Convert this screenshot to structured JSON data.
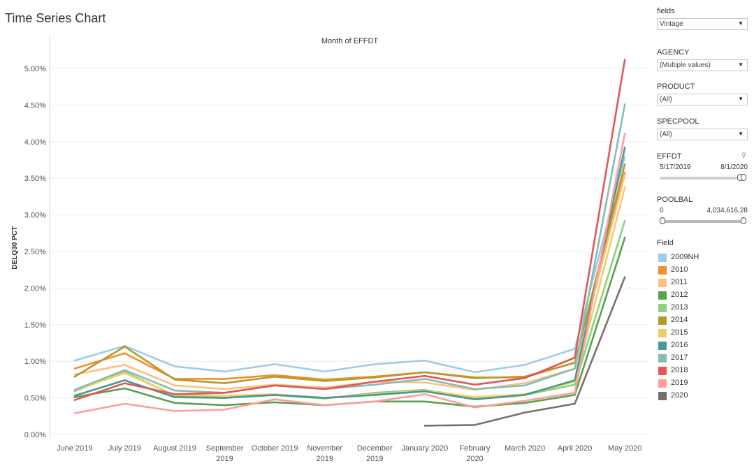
{
  "page_title": "Time Series Chart",
  "filters": {
    "fields": {
      "label": "fields",
      "value": "Vintage"
    },
    "agency": {
      "label": "AGENCY",
      "value": "(Multiple values)"
    },
    "product": {
      "label": "PRODUCT",
      "value": "(All)"
    },
    "specpool": {
      "label": "SPECPOOL",
      "value": "(All)"
    },
    "effdt": {
      "label": "EFFDT",
      "min_label": "5/17/2019",
      "max_label": "8/1/2020",
      "selected_range": [
        0.93,
        1.0
      ]
    },
    "poolbal": {
      "label": "POOLBAL",
      "min_label": "0",
      "max_label": "4,034,616,28",
      "selected_range": [
        0.0,
        1.0
      ]
    }
  },
  "legend": {
    "title": "Field"
  },
  "chart_data": {
    "type": "line",
    "title": "Month of EFFDT",
    "xlabel": "",
    "ylabel": "DELQ30 PCT",
    "categories": [
      "June 2019",
      "July 2019",
      "August 2019",
      "September\n2019",
      "October 2019",
      "November\n2019",
      "December\n2019",
      "January 2020",
      "February\n2020",
      "March 2020",
      "April 2020",
      "May 2020"
    ],
    "y_ticks": [
      "0.00%",
      "0.50%",
      "1.00%",
      "1.50%",
      "2.00%",
      "2.50%",
      "3.00%",
      "3.50%",
      "4.00%",
      "4.50%",
      "5.00%"
    ],
    "ylim": [
      0,
      5.25
    ],
    "grid": true,
    "legend_position": "right",
    "series": [
      {
        "name": "2009NH",
        "color": "#a0cbe8",
        "values": [
          1.01,
          1.21,
          0.93,
          0.86,
          0.96,
          0.86,
          0.96,
          1.01,
          0.85,
          0.95,
          1.17,
          3.8
        ]
      },
      {
        "name": "2010",
        "color": "#f28e2b",
        "values": [
          0.9,
          1.11,
          0.76,
          0.76,
          0.81,
          0.75,
          0.79,
          0.85,
          0.78,
          0.78,
          0.98,
          3.58
        ]
      },
      {
        "name": "2011",
        "color": "#ffbe7d",
        "values": [
          0.82,
          0.95,
          0.67,
          0.62,
          0.68,
          0.64,
          0.72,
          0.71,
          0.61,
          0.7,
          0.9,
          3.55
        ]
      },
      {
        "name": "2012",
        "color": "#59a14f",
        "values": [
          0.51,
          0.63,
          0.43,
          0.4,
          0.44,
          0.4,
          0.45,
          0.45,
          0.38,
          0.43,
          0.54,
          2.69
        ]
      },
      {
        "name": "2013",
        "color": "#8cd17d",
        "values": [
          0.59,
          0.86,
          0.53,
          0.5,
          0.54,
          0.49,
          0.57,
          0.61,
          0.5,
          0.54,
          0.68,
          2.92
        ]
      },
      {
        "name": "2014",
        "color": "#b6992d",
        "values": [
          0.79,
          1.2,
          0.75,
          0.7,
          0.79,
          0.73,
          0.78,
          0.85,
          0.77,
          0.79,
          0.98,
          3.69
        ]
      },
      {
        "name": "2015",
        "color": "#f1ce63",
        "values": [
          0.6,
          0.84,
          0.54,
          0.53,
          0.55,
          0.5,
          0.55,
          0.6,
          0.51,
          0.55,
          0.72,
          3.38
        ]
      },
      {
        "name": "2016",
        "color": "#499894",
        "values": [
          0.53,
          0.74,
          0.51,
          0.5,
          0.54,
          0.5,
          0.54,
          0.59,
          0.48,
          0.54,
          0.74,
          3.92
        ]
      },
      {
        "name": "2017",
        "color": "#86bcb6",
        "values": [
          0.61,
          0.88,
          0.6,
          0.57,
          0.67,
          0.62,
          0.68,
          0.76,
          0.62,
          0.67,
          0.9,
          4.51
        ]
      },
      {
        "name": "2018",
        "color": "#e15759",
        "values": [
          0.47,
          0.7,
          0.55,
          0.57,
          0.67,
          0.62,
          0.72,
          0.8,
          0.68,
          0.77,
          1.05,
          5.12
        ]
      },
      {
        "name": "2019",
        "color": "#ff9d9a",
        "values": [
          0.29,
          0.42,
          0.32,
          0.34,
          0.48,
          0.4,
          0.45,
          0.55,
          0.37,
          0.46,
          0.57,
          4.11
        ]
      },
      {
        "name": "2020",
        "color": "#79706e",
        "values": [
          null,
          null,
          null,
          null,
          null,
          null,
          null,
          0.12,
          0.13,
          0.3,
          0.42,
          2.15
        ]
      }
    ]
  }
}
